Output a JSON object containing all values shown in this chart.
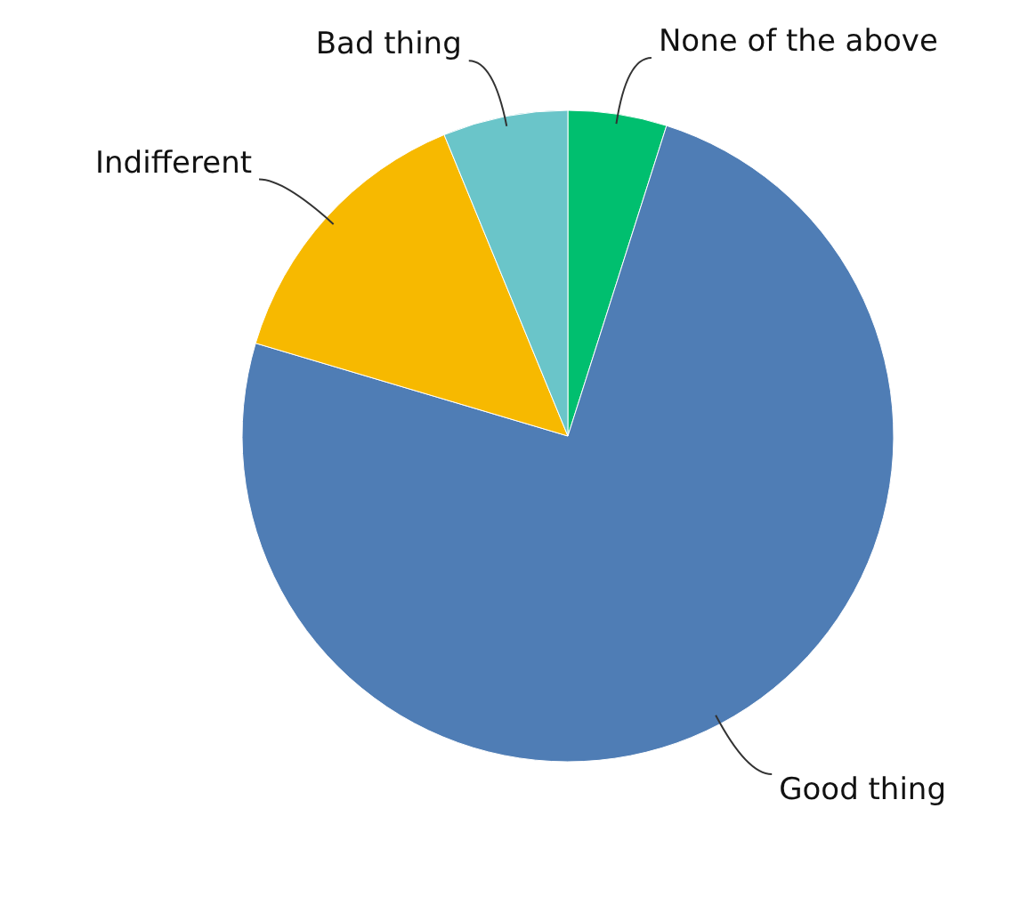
{
  "chart_data": {
    "type": "pie",
    "categories": [
      "None of the above",
      "Good thing",
      "Indifferent",
      "Bad thing"
    ],
    "values": [
      4.9,
      74.7,
      14.2,
      6.2
    ],
    "colors": [
      "#00bf6f",
      "#4f7db5",
      "#f7b900",
      "#6ac5c9"
    ]
  }
}
